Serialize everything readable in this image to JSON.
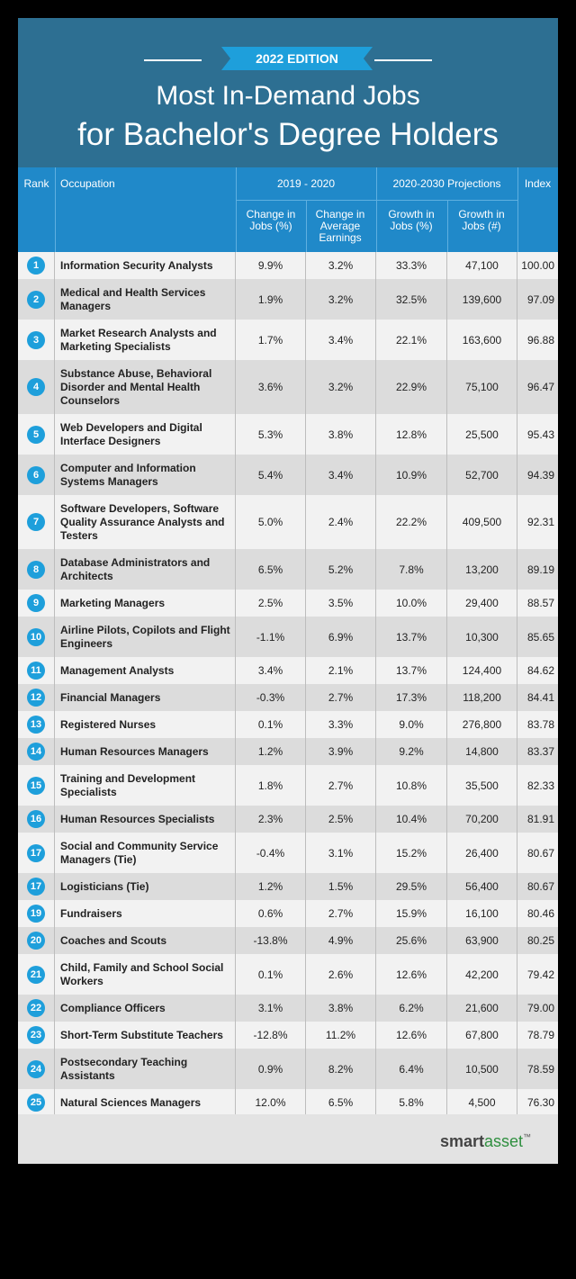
{
  "header": {
    "edition": "2022 EDITION",
    "title_line1": "Most In-Demand Jobs",
    "title_line2": "for Bachelor's Degree Holders"
  },
  "columns": {
    "rank": "Rank",
    "occupation": "Occupation",
    "group1": "2019 - 2020",
    "group2": "2020-2030 Projections",
    "index": "Index",
    "change_jobs": "Change in Jobs (%)",
    "change_earnings": "Change in Average Earnings",
    "growth_pct": "Growth in Jobs (%)",
    "growth_num": "Growth in Jobs (#)"
  },
  "colors": {
    "hero": "#2d6f92",
    "header_bar": "#2089c9",
    "badge": "#1e9fdb"
  },
  "chart_data": {
    "type": "table",
    "rows": [
      {
        "rank": "1",
        "occupation": "Information Security Analysts",
        "change_jobs": "9.9%",
        "change_earnings": "3.2%",
        "growth_pct": "33.3%",
        "growth_num": "47,100",
        "index": "100.00"
      },
      {
        "rank": "2",
        "occupation": "Medical and Health Services Managers",
        "change_jobs": "1.9%",
        "change_earnings": "3.2%",
        "growth_pct": "32.5%",
        "growth_num": "139,600",
        "index": "97.09"
      },
      {
        "rank": "3",
        "occupation": "Market Research Analysts and Marketing Specialists",
        "change_jobs": "1.7%",
        "change_earnings": "3.4%",
        "growth_pct": "22.1%",
        "growth_num": "163,600",
        "index": "96.88"
      },
      {
        "rank": "4",
        "occupation": "Substance Abuse, Behavioral Disorder and Mental Health Counselors",
        "change_jobs": "3.6%",
        "change_earnings": "3.2%",
        "growth_pct": "22.9%",
        "growth_num": "75,100",
        "index": "96.47"
      },
      {
        "rank": "5",
        "occupation": "Web Developers and Digital Interface Designers",
        "change_jobs": "5.3%",
        "change_earnings": "3.8%",
        "growth_pct": "12.8%",
        "growth_num": "25,500",
        "index": "95.43"
      },
      {
        "rank": "6",
        "occupation": "Computer and Information Systems Managers",
        "change_jobs": "5.4%",
        "change_earnings": "3.4%",
        "growth_pct": "10.9%",
        "growth_num": "52,700",
        "index": "94.39"
      },
      {
        "rank": "7",
        "occupation": "Software Developers, Software Quality Assurance Analysts and Testers",
        "change_jobs": "5.0%",
        "change_earnings": "2.4%",
        "growth_pct": "22.2%",
        "growth_num": "409,500",
        "index": "92.31"
      },
      {
        "rank": "8",
        "occupation": "Database Administrators and Architects",
        "change_jobs": "6.5%",
        "change_earnings": "5.2%",
        "growth_pct": "7.8%",
        "growth_num": "13,200",
        "index": "89.19"
      },
      {
        "rank": "9",
        "occupation": "Marketing Managers",
        "change_jobs": "2.5%",
        "change_earnings": "3.5%",
        "growth_pct": "10.0%",
        "growth_num": "29,400",
        "index": "88.57"
      },
      {
        "rank": "10",
        "occupation": "Airline Pilots, Copilots and Flight Engineers",
        "change_jobs": "-1.1%",
        "change_earnings": "6.9%",
        "growth_pct": "13.7%",
        "growth_num": "10,300",
        "index": "85.65"
      },
      {
        "rank": "11",
        "occupation": "Management Analysts",
        "change_jobs": "3.4%",
        "change_earnings": "2.1%",
        "growth_pct": "13.7%",
        "growth_num": "124,400",
        "index": "84.62"
      },
      {
        "rank": "12",
        "occupation": "Financial Managers",
        "change_jobs": "-0.3%",
        "change_earnings": "2.7%",
        "growth_pct": "17.3%",
        "growth_num": "118,200",
        "index": "84.41"
      },
      {
        "rank": "13",
        "occupation": "Registered Nurses",
        "change_jobs": "0.1%",
        "change_earnings": "3.3%",
        "growth_pct": "9.0%",
        "growth_num": "276,800",
        "index": "83.78"
      },
      {
        "rank": "14",
        "occupation": "Human Resources Managers",
        "change_jobs": "1.2%",
        "change_earnings": "3.9%",
        "growth_pct": "9.2%",
        "growth_num": "14,800",
        "index": "83.37"
      },
      {
        "rank": "15",
        "occupation": "Training and Development Specialists",
        "change_jobs": "1.8%",
        "change_earnings": "2.7%",
        "growth_pct": "10.8%",
        "growth_num": "35,500",
        "index": "82.33"
      },
      {
        "rank": "16",
        "occupation": "Human Resources Specialists",
        "change_jobs": "2.3%",
        "change_earnings": "2.5%",
        "growth_pct": "10.4%",
        "growth_num": "70,200",
        "index": "81.91"
      },
      {
        "rank": "17",
        "occupation": "Social and Community Service Managers (Tie)",
        "change_jobs": "-0.4%",
        "change_earnings": "3.1%",
        "growth_pct": "15.2%",
        "growth_num": "26,400",
        "index": "80.67"
      },
      {
        "rank": "17",
        "occupation": "Logisticians (Tie)",
        "change_jobs": "1.2%",
        "change_earnings": "1.5%",
        "growth_pct": "29.5%",
        "growth_num": "56,400",
        "index": "80.67"
      },
      {
        "rank": "19",
        "occupation": "Fundraisers",
        "change_jobs": "0.6%",
        "change_earnings": "2.7%",
        "growth_pct": "15.9%",
        "growth_num": "16,100",
        "index": "80.46"
      },
      {
        "rank": "20",
        "occupation": "Coaches and Scouts",
        "change_jobs": "-13.8%",
        "change_earnings": "4.9%",
        "growth_pct": "25.6%",
        "growth_num": "63,900",
        "index": "80.25"
      },
      {
        "rank": "21",
        "occupation": "Child, Family and School Social Workers",
        "change_jobs": "0.1%",
        "change_earnings": "2.6%",
        "growth_pct": "12.6%",
        "growth_num": "42,200",
        "index": "79.42"
      },
      {
        "rank": "22",
        "occupation": "Compliance Officers",
        "change_jobs": "3.1%",
        "change_earnings": "3.8%",
        "growth_pct": "6.2%",
        "growth_num": "21,600",
        "index": "79.00"
      },
      {
        "rank": "23",
        "occupation": "Short-Term Substitute Teachers",
        "change_jobs": "-12.8%",
        "change_earnings": "11.2%",
        "growth_pct": "12.6%",
        "growth_num": "67,800",
        "index": "78.79"
      },
      {
        "rank": "24",
        "occupation": "Postsecondary Teaching Assistants",
        "change_jobs": "0.9%",
        "change_earnings": "8.2%",
        "growth_pct": "6.4%",
        "growth_num": "10,500",
        "index": "78.59"
      },
      {
        "rank": "25",
        "occupation": "Natural Sciences Managers",
        "change_jobs": "12.0%",
        "change_earnings": "6.5%",
        "growth_pct": "5.8%",
        "growth_num": "4,500",
        "index": "76.30"
      }
    ]
  },
  "footer": {
    "logo_smart": "smart",
    "logo_asset": "asset",
    "logo_tm": "™"
  }
}
